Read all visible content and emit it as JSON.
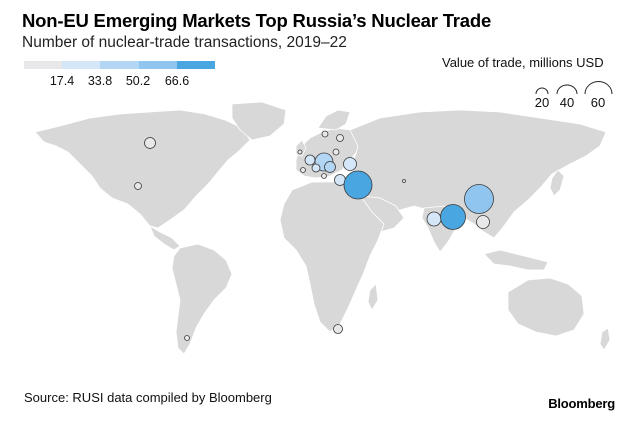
{
  "title": "Non-EU Emerging Markets Top Russia’s Nuclear Trade",
  "subtitle": "Number of nuclear-trade transactions, 2019–22",
  "color_legend": {
    "ticks": [
      "17.4",
      "33.8",
      "50.2",
      "66.6"
    ],
    "colors": [
      "#e8e8ea",
      "#d4e6f7",
      "#b3d6f4",
      "#8fc5ef",
      "#4aa6e0"
    ]
  },
  "size_legend": {
    "title": "Value of trade, millions USD",
    "labels": [
      "20",
      "40",
      "60"
    ]
  },
  "source": "Source: RUSI data compiled by Bloomberg",
  "brand": "Bloomberg",
  "colors": {
    "land": "#d8d8d8",
    "border": "#ffffff",
    "bubble_stroke": "#3a3a3a"
  }
}
